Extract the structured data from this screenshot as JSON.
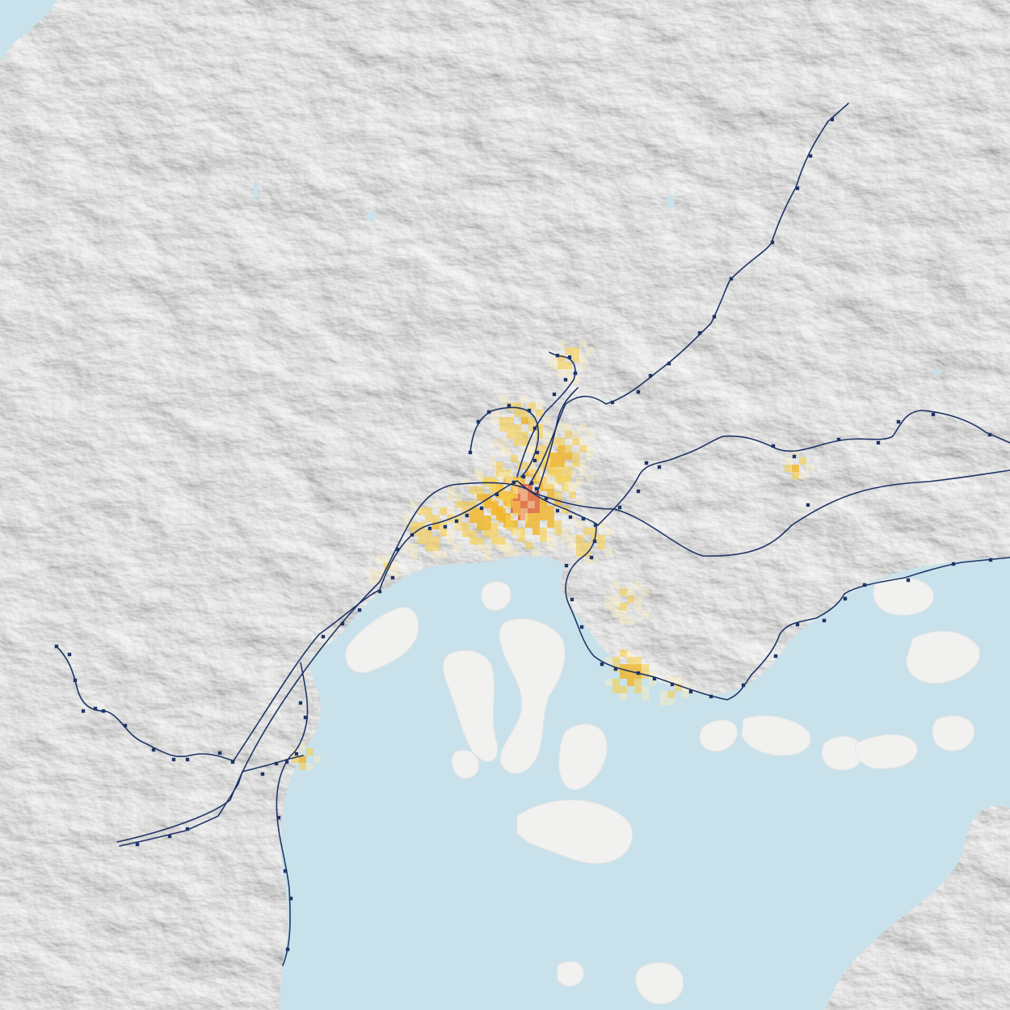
{
  "map": {
    "colors": {
      "land": "#f4f4f3",
      "water": "#c9e1ea",
      "rail_lines": "#1f3567",
      "stations": "#1f3567",
      "density_low": "#fdf0c0",
      "density_mid": "#f9d048",
      "density_high": "#f2b320",
      "density_peak": "#e0734a"
    },
    "layers": [
      "terrain-hillshade",
      "sea",
      "islands",
      "population-density-grid",
      "rail-lines",
      "rail-stations"
    ],
    "density_levels": [
      0.15,
      0.4,
      0.7,
      1.0
    ]
  }
}
